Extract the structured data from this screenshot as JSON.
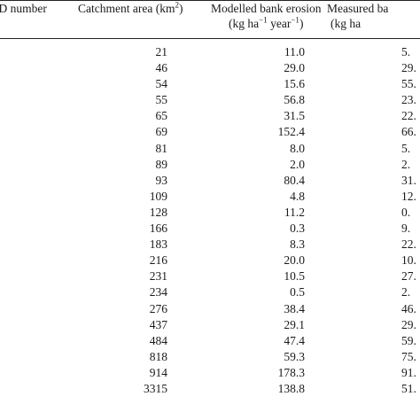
{
  "table": {
    "headers": {
      "id": "ID number",
      "area_prefix": "Catchment area (km",
      "area_sup": "2",
      "area_suffix": ")",
      "modelled_line1": "Modelled bank erosion",
      "modelled_unit_a": "(kg ha",
      "modelled_sup_a": "−1",
      "modelled_unit_b": " year",
      "modelled_sup_b": "−1",
      "modelled_unit_c": ")",
      "measured_line1": "Measured ba",
      "measured_unit": "(kg ha"
    },
    "rows": [
      {
        "area": "21",
        "modelled": "11.0",
        "measured": "5."
      },
      {
        "area": "46",
        "modelled": "29.0",
        "measured": "29."
      },
      {
        "area": "54",
        "modelled": "15.6",
        "measured": "55."
      },
      {
        "area": "55",
        "modelled": "56.8",
        "measured": "23."
      },
      {
        "area": "65",
        "modelled": "31.5",
        "measured": "22."
      },
      {
        "area": "69",
        "modelled": "152.4",
        "measured": "66."
      },
      {
        "area": "81",
        "modelled": "8.0",
        "measured": "5."
      },
      {
        "area": "89",
        "modelled": "2.0",
        "measured": "2."
      },
      {
        "area": "93",
        "modelled": "80.4",
        "measured": "31."
      },
      {
        "area": "109",
        "modelled": "4.8",
        "measured": "12."
      },
      {
        "area": "128",
        "modelled": "11.2",
        "measured": "0."
      },
      {
        "area": "166",
        "modelled": "0.3",
        "measured": "9."
      },
      {
        "area": "183",
        "modelled": "8.3",
        "measured": "22."
      },
      {
        "area": "216",
        "modelled": "20.0",
        "measured": "10."
      },
      {
        "area": "231",
        "modelled": "10.5",
        "measured": "27."
      },
      {
        "area": "234",
        "modelled": "0.5",
        "measured": "2."
      },
      {
        "area": "276",
        "modelled": "38.4",
        "measured": "46."
      },
      {
        "area": "437",
        "modelled": "29.1",
        "measured": "29."
      },
      {
        "area": "484",
        "modelled": "47.4",
        "measured": "59."
      },
      {
        "area": "818",
        "modelled": "59.3",
        "measured": "75."
      },
      {
        "area": "914",
        "modelled": "178.3",
        "measured": "91."
      },
      {
        "area": "3315",
        "modelled": "138.8",
        "measured": "51."
      }
    ]
  }
}
